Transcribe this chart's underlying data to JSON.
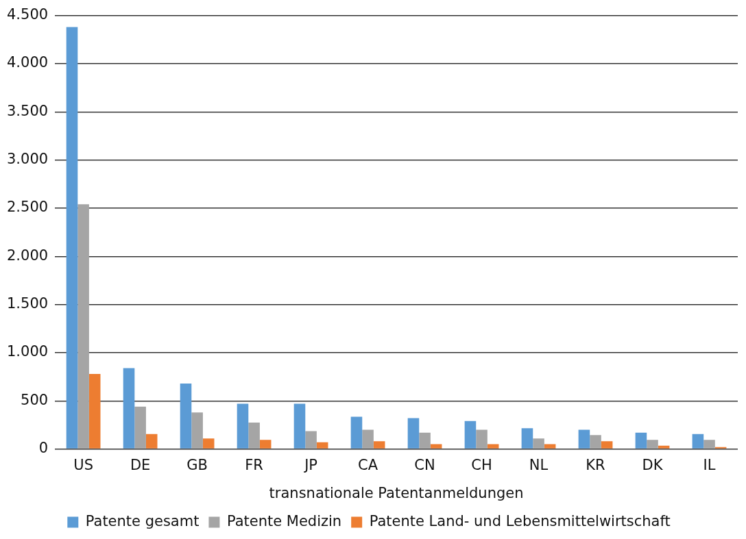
{
  "chart_data": {
    "type": "bar",
    "xlabel": "transnationale Patentanmeldungen",
    "categories": [
      "US",
      "DE",
      "GB",
      "FR",
      "JP",
      "CA",
      "CN",
      "CH",
      "NL",
      "KR",
      "DK",
      "IL"
    ],
    "series": [
      {
        "name": "Patente gesamt",
        "color": "#5b9bd5",
        "values": [
          4380,
          840,
          680,
          470,
          470,
          335,
          320,
          290,
          215,
          200,
          170,
          155
        ]
      },
      {
        "name": "Patente Medizin",
        "color": "#a5a5a5",
        "values": [
          2540,
          440,
          380,
          275,
          185,
          200,
          170,
          200,
          110,
          145,
          95,
          95
        ]
      },
      {
        "name": "Patente Land- und Lebensmittelwirtschaft",
        "color": "#ed7d31",
        "values": [
          780,
          155,
          110,
          95,
          70,
          80,
          50,
          50,
          50,
          80,
          35,
          20
        ]
      }
    ],
    "ylim": [
      0,
      4500
    ],
    "yticks": [
      {
        "value": 0,
        "label": "0"
      },
      {
        "value": 500,
        "label": "500"
      },
      {
        "value": 1000,
        "label": "1.000"
      },
      {
        "value": 1500,
        "label": "1.500"
      },
      {
        "value": 2000,
        "label": "2.000"
      },
      {
        "value": 2500,
        "label": "2.500"
      },
      {
        "value": 3000,
        "label": "3.000"
      },
      {
        "value": 3500,
        "label": "3.500"
      },
      {
        "value": 4000,
        "label": "4.000"
      },
      {
        "value": 4500,
        "label": "4.500"
      }
    ],
    "grid": "y",
    "legend": "bottom"
  }
}
